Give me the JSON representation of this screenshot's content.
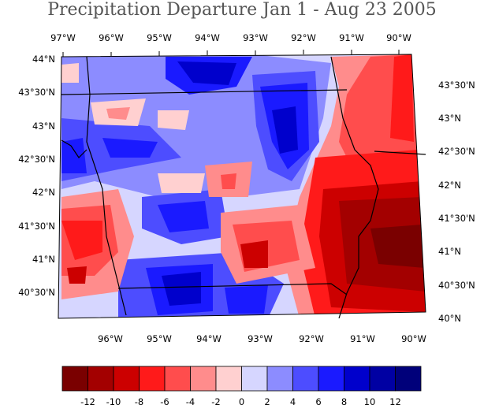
{
  "title": "Precipitation Departure Jan 1 - Aug 23 2005",
  "lon_top": [
    "97°W",
    "96°W",
    "95°W",
    "94°W",
    "93°W",
    "92°W",
    "91°W",
    "90°W"
  ],
  "lon_bottom": [
    "96°W",
    "95°W",
    "94°W",
    "93°W",
    "92°W",
    "91°W",
    "90°W"
  ],
  "lat_left": [
    "44°N",
    "43°30'N",
    "43°N",
    "42°30'N",
    "42°N",
    "41°30'N",
    "41°N",
    "40°30'N"
  ],
  "lat_right": [
    "43°30'N",
    "43°N",
    "42°30'N",
    "42°N",
    "41°30'N",
    "41°N",
    "40°30'N",
    "40°N"
  ],
  "legend": {
    "colors": [
      "#7a0000",
      "#a30000",
      "#cc0000",
      "#ff1a1a",
      "#ff4d4d",
      "#ff8c8c",
      "#ffd0d0",
      "#d6d6ff",
      "#8c8cff",
      "#4d4dff",
      "#1a1aff",
      "#0000cc",
      "#0000a3",
      "#00007a"
    ],
    "labels": [
      "-12",
      "-10",
      "-8",
      "-6",
      "-4",
      "-2",
      "0",
      "2",
      "4",
      "6",
      "8",
      "10",
      "12"
    ]
  },
  "state_labels": []
}
